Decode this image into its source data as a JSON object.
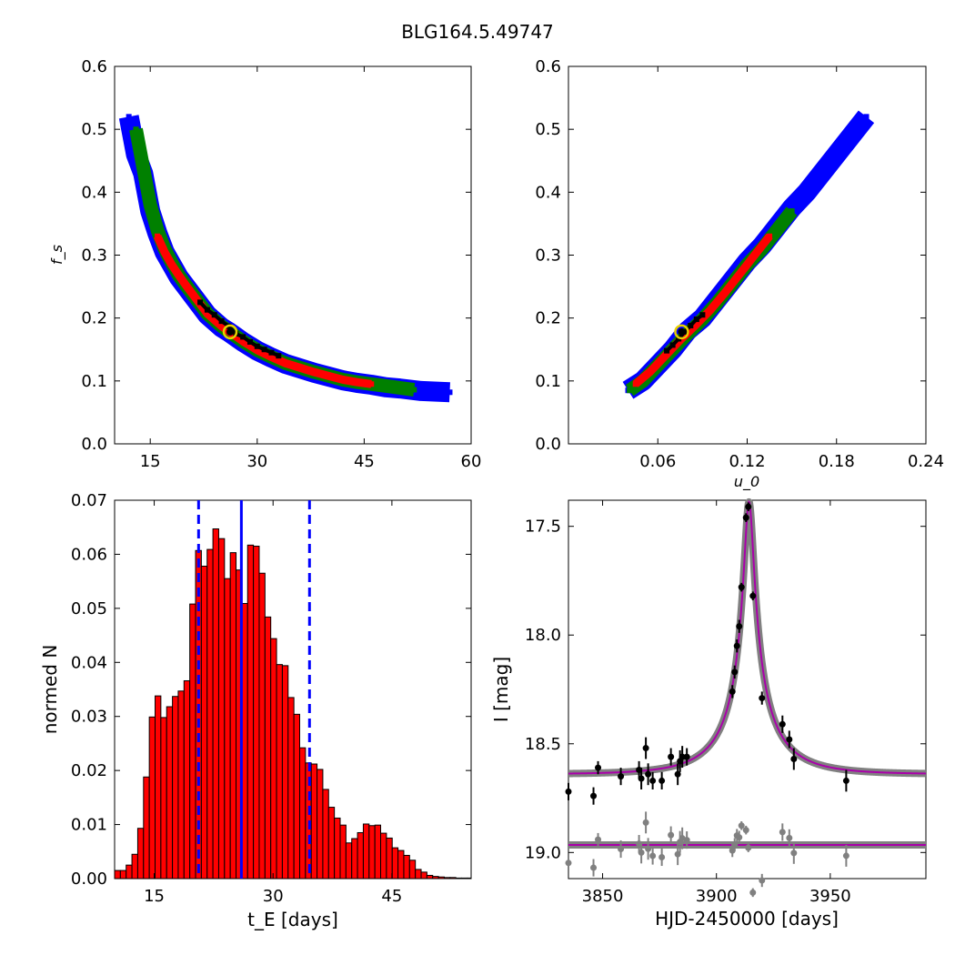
{
  "figure_title": "BLG164.5.49747",
  "chart_data": [
    {
      "type": "scatter",
      "panel": "fs-vs-tE",
      "ylabel": "f_s",
      "xlabel": "",
      "xlim": [
        10,
        60
      ],
      "ylim": [
        0.0,
        0.6
      ],
      "xticks": [
        15,
        30,
        45,
        60
      ],
      "yticks": [
        0.0,
        0.1,
        0.2,
        0.3,
        0.4,
        0.5,
        0.6
      ],
      "xtick_labels": [
        "15",
        "30",
        "45",
        "60"
      ],
      "ytick_labels": [
        "0.0",
        "0.1",
        "0.2",
        "0.3",
        "0.4",
        "0.5",
        "0.6"
      ],
      "series": [
        {
          "color": "#0000ff",
          "x": [
            12,
            13,
            14,
            15,
            16,
            17,
            18,
            19,
            20,
            21,
            22,
            23,
            24,
            25,
            26,
            27,
            28,
            29,
            30,
            32,
            34,
            36,
            38,
            40,
            42,
            44,
            46,
            48,
            50,
            53,
            57
          ],
          "y": [
            0.52,
            0.46,
            0.43,
            0.37,
            0.335,
            0.305,
            0.285,
            0.265,
            0.25,
            0.235,
            0.22,
            0.205,
            0.195,
            0.185,
            0.178,
            0.17,
            0.162,
            0.155,
            0.148,
            0.137,
            0.127,
            0.12,
            0.113,
            0.107,
            0.101,
            0.097,
            0.094,
            0.09,
            0.088,
            0.084,
            0.082
          ]
        },
        {
          "color": "#008000",
          "x": [
            13,
            14,
            15,
            16,
            17,
            18,
            19,
            20,
            21,
            22,
            23,
            24,
            25,
            26,
            27,
            28,
            29,
            30,
            32,
            34,
            36,
            38,
            40,
            42,
            44,
            46,
            48,
            50,
            52
          ],
          "y": [
            0.5,
            0.44,
            0.38,
            0.34,
            0.31,
            0.288,
            0.268,
            0.252,
            0.237,
            0.222,
            0.207,
            0.197,
            0.187,
            0.179,
            0.171,
            0.163,
            0.156,
            0.149,
            0.138,
            0.128,
            0.121,
            0.114,
            0.108,
            0.102,
            0.098,
            0.095,
            0.092,
            0.089,
            0.086
          ]
        },
        {
          "color": "#ff0000",
          "x": [
            16,
            17,
            18,
            19,
            20,
            21,
            22,
            23,
            24,
            25,
            26,
            27,
            28,
            29,
            30,
            32,
            34,
            36,
            38,
            40,
            42,
            44,
            46
          ],
          "y": [
            0.33,
            0.305,
            0.285,
            0.268,
            0.252,
            0.237,
            0.222,
            0.207,
            0.197,
            0.187,
            0.179,
            0.171,
            0.163,
            0.156,
            0.149,
            0.138,
            0.128,
            0.121,
            0.114,
            0.108,
            0.102,
            0.098,
            0.095
          ]
        },
        {
          "color": "#000000",
          "x": [
            22,
            23,
            24,
            25,
            26,
            27,
            28,
            29,
            30,
            31,
            32,
            33
          ],
          "y": [
            0.225,
            0.213,
            0.205,
            0.195,
            0.187,
            0.175,
            0.17,
            0.162,
            0.155,
            0.15,
            0.145,
            0.14
          ]
        }
      ],
      "best_fit": {
        "x": 26.2,
        "y": 0.178
      }
    },
    {
      "type": "scatter",
      "panel": "fs-vs-u0",
      "xlabel": "u_0",
      "ylabel": "",
      "xlim": [
        0.0,
        0.24
      ],
      "ylim": [
        0.0,
        0.6
      ],
      "xticks": [
        0.06,
        0.12,
        0.18,
        0.24
      ],
      "yticks": [
        0.0,
        0.1,
        0.2,
        0.3,
        0.4,
        0.5,
        0.6
      ],
      "xtick_labels": [
        "0.06",
        "0.12",
        "0.18",
        "0.24"
      ],
      "ytick_labels": [
        "0.0",
        "0.1",
        "0.2",
        "0.3",
        "0.4",
        "0.5",
        "0.6"
      ],
      "series": [
        {
          "color": "#0000ff",
          "x": [
            0.04,
            0.05,
            0.06,
            0.07,
            0.08,
            0.09,
            0.1,
            0.11,
            0.12,
            0.13,
            0.14,
            0.15,
            0.16,
            0.17,
            0.18,
            0.19,
            0.2
          ],
          "y": [
            0.085,
            0.1,
            0.125,
            0.15,
            0.18,
            0.2,
            0.23,
            0.26,
            0.29,
            0.315,
            0.345,
            0.375,
            0.4,
            0.43,
            0.46,
            0.49,
            0.52
          ]
        },
        {
          "color": "#008000",
          "x": [
            0.041,
            0.05,
            0.06,
            0.07,
            0.08,
            0.09,
            0.1,
            0.11,
            0.12,
            0.13,
            0.14,
            0.15
          ],
          "y": [
            0.085,
            0.1,
            0.125,
            0.15,
            0.175,
            0.198,
            0.225,
            0.255,
            0.285,
            0.31,
            0.34,
            0.37
          ]
        },
        {
          "color": "#ff0000",
          "x": [
            0.045,
            0.055,
            0.065,
            0.075,
            0.085,
            0.095,
            0.105,
            0.115,
            0.125,
            0.135
          ],
          "y": [
            0.095,
            0.115,
            0.14,
            0.165,
            0.188,
            0.212,
            0.24,
            0.27,
            0.3,
            0.33
          ]
        },
        {
          "color": "#000000",
          "x": [
            0.066,
            0.07,
            0.074,
            0.078,
            0.082,
            0.086,
            0.09
          ],
          "y": [
            0.148,
            0.157,
            0.167,
            0.178,
            0.188,
            0.198,
            0.205
          ]
        }
      ],
      "best_fit": {
        "x": 0.076,
        "y": 0.178
      }
    },
    {
      "type": "bar",
      "panel": "tE-histogram",
      "xlabel": "t_E  [days]",
      "ylabel": "normed N",
      "xlim": [
        10,
        55
      ],
      "ylim": [
        0.0,
        0.07
      ],
      "xticks": [
        15,
        30,
        45
      ],
      "yticks": [
        0.0,
        0.01,
        0.02,
        0.03,
        0.04,
        0.05,
        0.06,
        0.07
      ],
      "xtick_labels": [
        "15",
        "30",
        "45"
      ],
      "ytick_labels": [
        "0.00",
        "0.01",
        "0.02",
        "0.03",
        "0.04",
        "0.05",
        "0.06",
        "0.07"
      ],
      "bin_start": 10.0,
      "bin_width": 0.73,
      "values": [
        0.0015,
        0.0015,
        0.0025,
        0.0045,
        0.0093,
        0.0188,
        0.0299,
        0.0338,
        0.0298,
        0.0318,
        0.0337,
        0.0347,
        0.0366,
        0.0508,
        0.0607,
        0.0578,
        0.0609,
        0.0647,
        0.0629,
        0.0555,
        0.0603,
        0.0571,
        0.0509,
        0.0617,
        0.0615,
        0.0565,
        0.0484,
        0.0444,
        0.0396,
        0.0394,
        0.0335,
        0.0304,
        0.0242,
        0.0214,
        0.0212,
        0.0202,
        0.0165,
        0.0132,
        0.0112,
        0.0099,
        0.0066,
        0.0074,
        0.0085,
        0.0101,
        0.0098,
        0.0099,
        0.0084,
        0.0075,
        0.0057,
        0.0052,
        0.0043,
        0.0034,
        0.0017,
        0.0012,
        0.0006,
        0.0004,
        0.0003,
        0.0002,
        0.0002,
        0.0001,
        0.0001,
        0.0001
      ],
      "bar_color": "#ff0000",
      "median": 26.0,
      "bounds": [
        20.6,
        34.6
      ],
      "line_color": "#0000ff"
    },
    {
      "type": "line",
      "panel": "light-curve",
      "xlabel": "HJD-2450000 [days]",
      "ylabel": "I [mag]",
      "xlim": [
        3835,
        3992
      ],
      "ylim": [
        19.12,
        17.38
      ],
      "xticks": [
        3850,
        3900,
        3950
      ],
      "yticks": [
        17.5,
        18.0,
        18.5,
        19.0
      ],
      "xtick_labels": [
        "3850",
        "3900",
        "3950"
      ],
      "ytick_labels": [
        "17.5",
        "18.0",
        "18.5",
        "19.0"
      ],
      "model": {
        "t0": 3914.3,
        "tE": 26.0,
        "u0": 0.076,
        "fs": 0.178,
        "base": 18.64,
        "resid_level": 18.965,
        "color": "#aa00aa"
      },
      "data": {
        "x": [
          3835,
          3846,
          3848,
          3858,
          3866,
          3867,
          3869,
          3870,
          3872,
          3876,
          3880,
          3883,
          3884,
          3885,
          3887,
          3907,
          3908,
          3909,
          3910,
          3911,
          3913,
          3914,
          3916,
          3920,
          3929,
          3932,
          3934,
          3957
        ],
        "y": [
          18.72,
          18.74,
          18.61,
          18.65,
          18.62,
          18.66,
          18.52,
          18.64,
          18.67,
          18.67,
          18.56,
          18.64,
          18.58,
          18.56,
          18.56,
          18.26,
          18.17,
          18.05,
          17.96,
          17.78,
          17.46,
          17.41,
          17.82,
          18.29,
          18.41,
          18.48,
          18.57,
          18.67
        ],
        "err": [
          0.04,
          0.04,
          0.03,
          0.04,
          0.04,
          0.05,
          0.05,
          0.05,
          0.04,
          0.04,
          0.04,
          0.05,
          0.05,
          0.05,
          0.04,
          0.03,
          0.03,
          0.03,
          0.03,
          0.02,
          0.02,
          0.02,
          0.02,
          0.03,
          0.04,
          0.04,
          0.05,
          0.05
        ]
      }
    }
  ]
}
